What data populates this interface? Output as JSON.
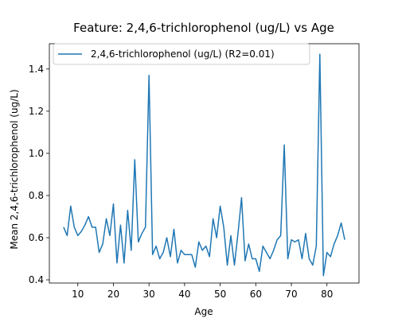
{
  "chart_data": {
    "type": "line",
    "title": "Feature: 2,4,6-trichlorophenol (ug/L) vs Age",
    "xlabel": "Age",
    "ylabel": "Mean 2,4,6-trichlorophenol (ug/L)",
    "xlim": [
      2,
      89
    ],
    "ylim": [
      0.385,
      1.52
    ],
    "xticks": [
      10,
      20,
      30,
      40,
      50,
      60,
      70,
      80
    ],
    "yticks": [
      0.4,
      0.6,
      0.8,
      1.0,
      1.2,
      1.4
    ],
    "ytick_labels": [
      "0.4",
      "0.6",
      "0.8",
      "1.0",
      "1.2",
      "1.4"
    ],
    "grid": false,
    "legend_position": "top-left",
    "series": [
      {
        "name": "2,4,6-trichlorophenol (ug/L) (R2=0.01)",
        "color": "#1f77b4",
        "x": [
          6,
          7,
          8,
          9,
          10,
          11,
          12,
          13,
          14,
          15,
          16,
          17,
          18,
          19,
          20,
          21,
          22,
          23,
          24,
          25,
          26,
          27,
          28,
          29,
          30,
          31,
          32,
          33,
          34,
          35,
          36,
          37,
          38,
          39,
          40,
          41,
          42,
          43,
          44,
          45,
          46,
          47,
          48,
          49,
          50,
          51,
          52,
          53,
          54,
          55,
          56,
          57,
          58,
          59,
          60,
          61,
          62,
          63,
          64,
          65,
          66,
          67,
          68,
          69,
          70,
          71,
          72,
          73,
          74,
          75,
          76,
          77,
          78,
          79,
          80,
          81,
          82,
          83,
          84,
          85
        ],
        "y": [
          0.65,
          0.61,
          0.75,
          0.65,
          0.61,
          0.63,
          0.66,
          0.7,
          0.65,
          0.65,
          0.53,
          0.57,
          0.69,
          0.61,
          0.76,
          0.48,
          0.66,
          0.48,
          0.73,
          0.54,
          0.97,
          0.58,
          0.62,
          0.65,
          1.37,
          0.52,
          0.56,
          0.5,
          0.53,
          0.6,
          0.51,
          0.64,
          0.48,
          0.54,
          0.52,
          0.52,
          0.52,
          0.46,
          0.58,
          0.54,
          0.56,
          0.51,
          0.69,
          0.6,
          0.75,
          0.65,
          0.47,
          0.61,
          0.47,
          0.62,
          0.79,
          0.49,
          0.57,
          0.5,
          0.5,
          0.44,
          0.56,
          0.53,
          0.5,
          0.54,
          0.59,
          0.61,
          1.04,
          0.5,
          0.59,
          0.58,
          0.59,
          0.5,
          0.62,
          0.5,
          0.47,
          0.56,
          1.47,
          0.42,
          0.53,
          0.51,
          0.57,
          0.61,
          0.67,
          0.59
        ]
      }
    ]
  }
}
